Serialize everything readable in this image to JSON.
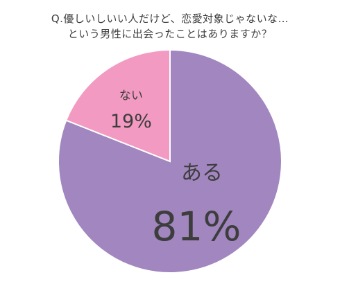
{
  "title_lines": [
    "Q.優しいしいい人だけど、恋愛対象じゃないな…",
    "という男性に出会ったことはありますか？"
  ],
  "chart_data": {
    "type": "pie",
    "title": "Q.優しいしいい人だけど、恋愛対象じゃないな…という男性に出会ったことはありますか？",
    "start": "12 o'clock",
    "direction": "clockwise",
    "legend": "none",
    "slices": [
      {
        "label": "ある",
        "value": 81,
        "value_label": "81%",
        "color": "#a186bf"
      },
      {
        "label": "ない",
        "value": 19,
        "value_label": "19%",
        "color": "#f39ac2"
      }
    ],
    "border_color": "#ffffff"
  }
}
